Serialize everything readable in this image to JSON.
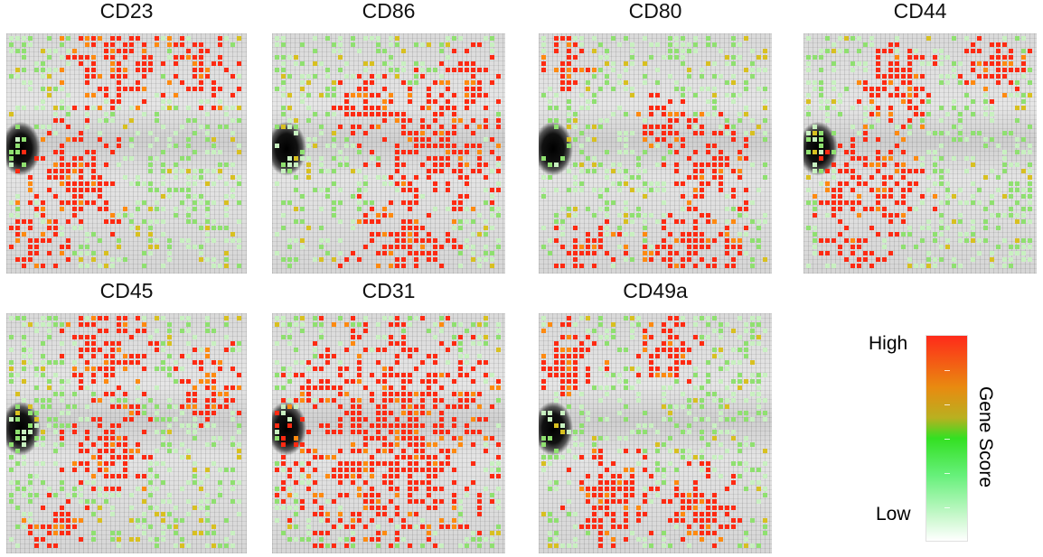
{
  "panels": [
    {
      "title": "CD23"
    },
    {
      "title": "CD86"
    },
    {
      "title": "CD80"
    },
    {
      "title": "CD44"
    },
    {
      "title": "CD45"
    },
    {
      "title": "CD31"
    },
    {
      "title": "CD49a"
    }
  ],
  "legend": {
    "high_label": "High",
    "low_label": "Low",
    "axis_label": "Gene Score",
    "colors": {
      "high": "#ff2a1a",
      "mid_high": "#e98a10",
      "mid": "#33e022",
      "low": "#ffffff"
    }
  }
}
